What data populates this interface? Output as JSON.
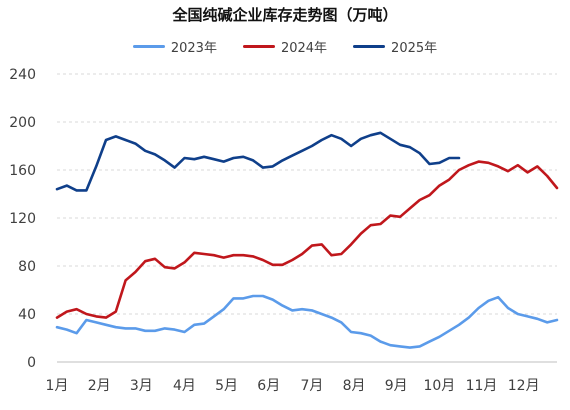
{
  "title": "全国纯碱企业库存走势图（万吨）",
  "colors": {
    "2023年": "#5b9bea",
    "2024年": "#c0171c",
    "2025年": "#0f3f8a",
    "grid": "#d9d9d9",
    "axis_text": "#404040"
  },
  "chart_data": {
    "type": "line",
    "title": "全国纯碱企业库存走势图（万吨）",
    "xlabel": "",
    "ylabel": "",
    "ylim": [
      0,
      240
    ],
    "yticks": [
      0,
      40,
      80,
      120,
      160,
      200,
      240
    ],
    "xlim": [
      0,
      51
    ],
    "x_tick_labels": [
      {
        "x": 0,
        "label": "1月"
      },
      {
        "x": 4.3,
        "label": "2月"
      },
      {
        "x": 8.6,
        "label": "3月"
      },
      {
        "x": 13,
        "label": "4月"
      },
      {
        "x": 17.3,
        "label": "5月"
      },
      {
        "x": 21.6,
        "label": "6月"
      },
      {
        "x": 26,
        "label": "7月"
      },
      {
        "x": 30.3,
        "label": "8月"
      },
      {
        "x": 34.6,
        "label": "9月"
      },
      {
        "x": 39,
        "label": "10月"
      },
      {
        "x": 43.3,
        "label": "11月"
      },
      {
        "x": 47.6,
        "label": "12月"
      }
    ],
    "grid": "horizontal",
    "legend": "top-center",
    "series": [
      {
        "name": "2023年",
        "x": [
          0,
          1,
          2,
          3,
          4,
          5,
          6,
          7,
          8,
          9,
          10,
          11,
          12,
          13,
          14,
          15,
          16,
          17,
          18,
          19,
          20,
          21,
          22,
          23,
          24,
          25,
          26,
          27,
          28,
          29,
          30,
          31,
          32,
          33,
          34,
          35,
          36,
          37,
          38,
          39,
          40,
          41,
          42,
          43,
          44,
          45,
          46,
          47,
          48,
          49,
          50,
          51
        ],
        "values": [
          29,
          27,
          24,
          35,
          33,
          31,
          29,
          28,
          28,
          26,
          26,
          28,
          27,
          25,
          31,
          32,
          38,
          44,
          53,
          53,
          55,
          55,
          52,
          47,
          43,
          44,
          43,
          40,
          37,
          33,
          25,
          24,
          22,
          17,
          14,
          13,
          12,
          13,
          17,
          21,
          26,
          31,
          37,
          45,
          51,
          54,
          45,
          40,
          38,
          36,
          33,
          35
        ]
      },
      {
        "name": "2024年",
        "x": [
          0,
          1,
          2,
          3,
          4,
          5,
          6,
          7,
          8,
          9,
          10,
          11,
          12,
          13,
          14,
          15,
          16,
          17,
          18,
          19,
          20,
          21,
          22,
          23,
          24,
          25,
          26,
          27,
          28,
          29,
          30,
          31,
          32,
          33,
          34,
          35,
          36,
          37,
          38,
          39,
          40,
          41,
          42,
          43,
          44,
          45,
          46,
          47,
          48,
          49,
          50,
          51
        ],
        "values": [
          37,
          42,
          44,
          40,
          38,
          37,
          42,
          68,
          75,
          84,
          86,
          79,
          78,
          83,
          91,
          90,
          89,
          87,
          89,
          89,
          88,
          85,
          81,
          81,
          85,
          90,
          97,
          98,
          89,
          90,
          98,
          107,
          114,
          115,
          122,
          121,
          128,
          135,
          139,
          147,
          152,
          160,
          164,
          167,
          166,
          163,
          159,
          164,
          158,
          163,
          155,
          145
        ]
      },
      {
        "name": "2025年",
        "x": [
          0,
          1,
          2,
          3,
          4,
          5,
          6,
          7,
          8,
          9,
          10,
          11,
          12,
          13,
          14,
          15,
          16,
          17,
          18,
          19,
          20,
          21,
          22,
          23,
          24,
          25,
          26,
          27,
          28,
          29,
          30,
          31,
          32,
          33,
          34,
          35,
          36,
          37,
          38,
          39,
          40,
          41
        ],
        "values": [
          144,
          147,
          143,
          143,
          163,
          185,
          188,
          185,
          182,
          176,
          173,
          168,
          162,
          170,
          169,
          171,
          169,
          167,
          170,
          171,
          168,
          162,
          163,
          168,
          172,
          176,
          180,
          185,
          189,
          186,
          180,
          186,
          189,
          191,
          186,
          181,
          179,
          174,
          165,
          166,
          170,
          170
        ]
      }
    ]
  }
}
